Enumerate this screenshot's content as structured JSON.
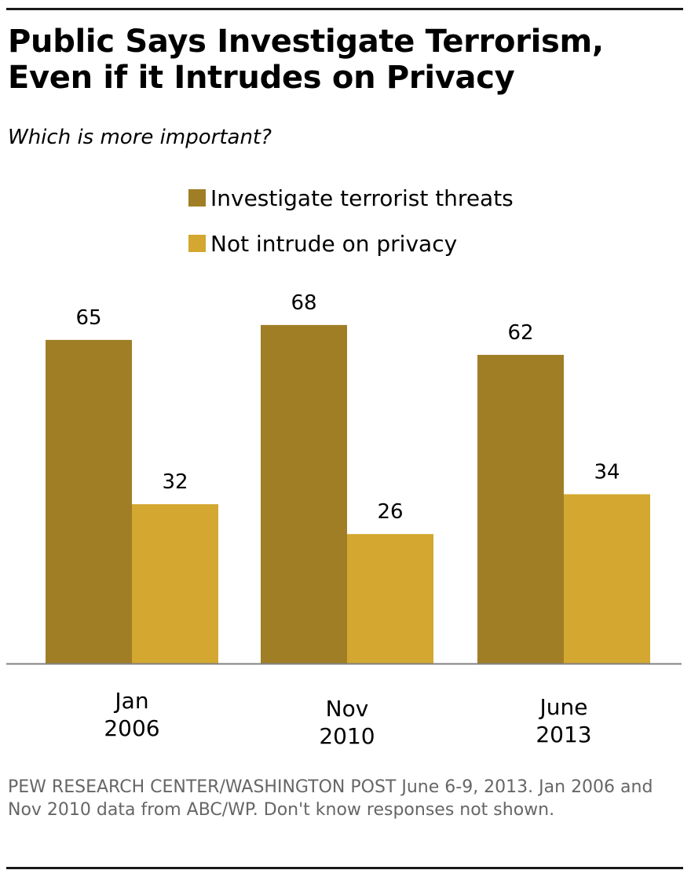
{
  "header": {
    "title_line1": "Public Says Investigate Terrorism,",
    "title_line2": "Even if it Intrudes on Privacy",
    "subtitle": "Which is more important?"
  },
  "source_text": "PEW RESEARCH CENTER/WASHINGTON POST June 6-9, 2013. Jan 2006 and Nov 2010 data from ABC/WP. Don't know responses not shown.",
  "colors": {
    "investigate": "#A07E26",
    "privacy": "#D3A730",
    "axis": "#808080"
  },
  "chart_data": {
    "type": "bar",
    "title": "Public Says Investigate Terrorism, Even if it Intrudes on Privacy",
    "subtitle": "Which is more important?",
    "xlabel": "",
    "ylabel": "",
    "ylim": [
      0,
      68
    ],
    "grid": false,
    "legend_position": "top",
    "categories": [
      [
        "Jan",
        "2006"
      ],
      [
        "Nov",
        "2010"
      ],
      [
        "June",
        "2013"
      ]
    ],
    "series": [
      {
        "name": "Investigate terrorist threats",
        "values": [
          65,
          68,
          62
        ]
      },
      {
        "name": "Not intrude on privacy",
        "values": [
          32,
          26,
          34
        ]
      }
    ]
  }
}
